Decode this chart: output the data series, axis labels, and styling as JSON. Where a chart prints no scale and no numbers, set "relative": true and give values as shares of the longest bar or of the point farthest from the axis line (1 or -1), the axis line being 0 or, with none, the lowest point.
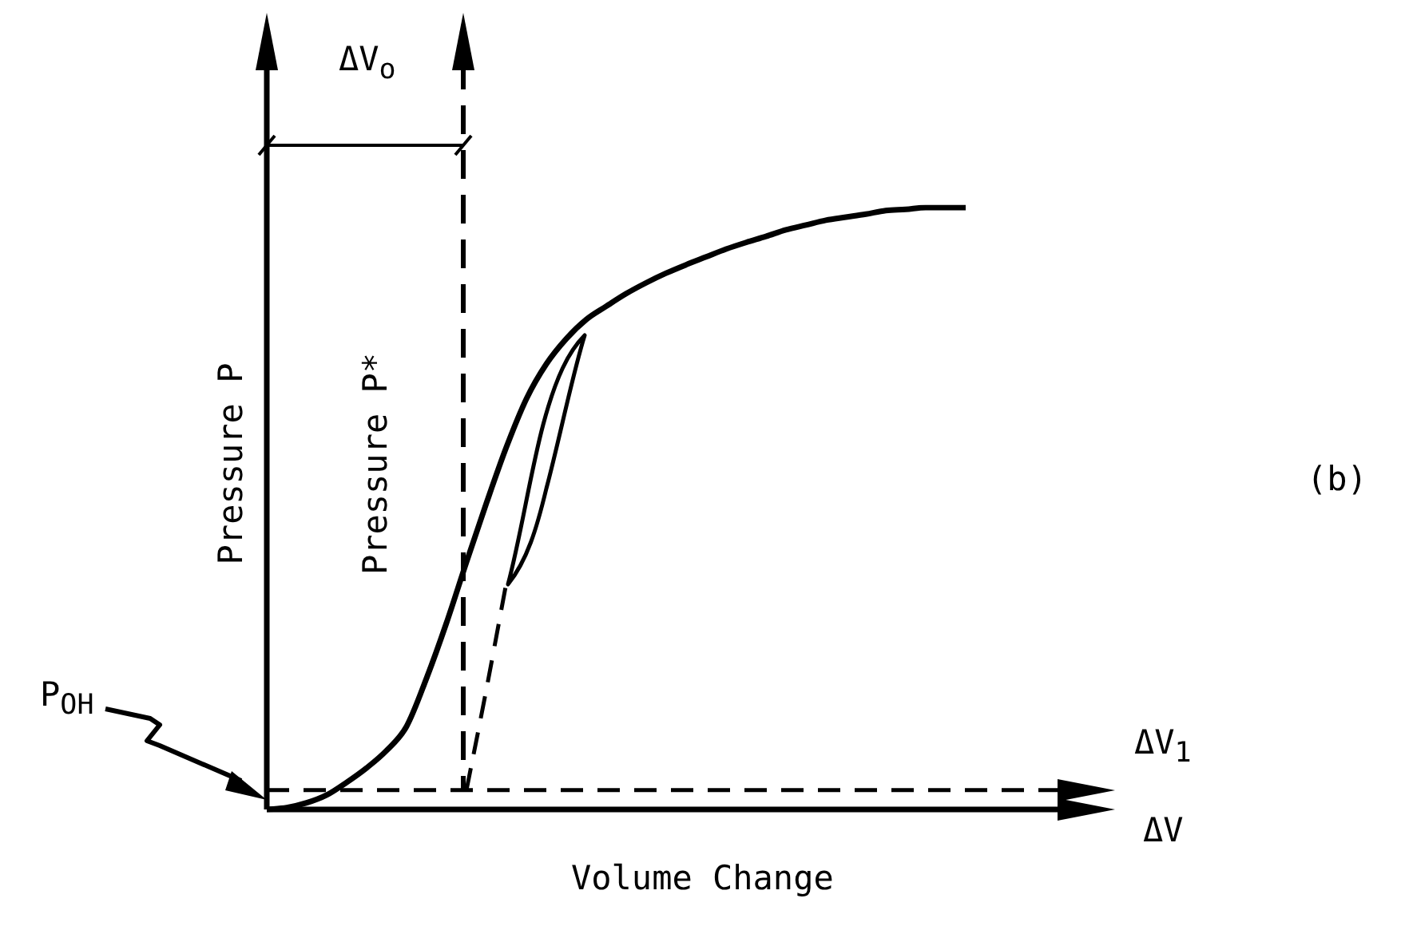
{
  "chart_data": {
    "type": "line",
    "relative": true,
    "xlabel": "Volume Change",
    "ylabel": "Pressure P",
    "categories": [
      null,
      null,
      null,
      null,
      null,
      null,
      null,
      null,
      null,
      null,
      null,
      null,
      null,
      null,
      null,
      null,
      null,
      null,
      null,
      null,
      null,
      null,
      null,
      null,
      null,
      null,
      null,
      null,
      null,
      null,
      null,
      null,
      null,
      null,
      null,
      null,
      null,
      null,
      null,
      null,
      null,
      null,
      null
    ],
    "series": [
      {
        "color": "#000000",
        "line_style": "solid",
        "values": [
          0,
          0.003,
          0.011,
          0.024,
          0.045,
          0.069,
          0.098,
          0.138,
          0.218,
          0.31,
          0.411,
          0.509,
          0.602,
          0.682,
          0.74,
          0.782,
          0.814,
          0.836,
          0.857,
          0.875,
          0.891,
          0.905,
          0.918,
          0.931,
          0.942,
          0.952,
          0.963,
          0.971,
          0.979,
          0.984,
          0.989,
          0.995,
          0.997,
          1,
          1,
          1,
          null,
          null,
          null,
          null,
          null,
          null,
          null
        ]
      },
      {
        "color": "#000000",
        "line_style": "dashed",
        "values": [
          null,
          null,
          null,
          null,
          null,
          null,
          null,
          null,
          null,
          null,
          0.032,
          0.2,
          0.377,
          null,
          null,
          null,
          null,
          null,
          null,
          null,
          null,
          null,
          null,
          null,
          null,
          null,
          null,
          null,
          null,
          null,
          null,
          null,
          null,
          null,
          null,
          null,
          null,
          null,
          null,
          null,
          null,
          null,
          null
        ]
      }
    ],
    "ref_lines": [
      {
        "axis": "y",
        "value": 0.032,
        "line_style": "dashed",
        "color": "#000000"
      }
    ],
    "annotations": [
      "ΔV$_{o}$",
      "P$_{OH}$",
      "ΔV$_{1}$",
      "ΔV",
      "(b)",
      "Pressure P*"
    ],
    "legend": false,
    "marker": "none"
  }
}
